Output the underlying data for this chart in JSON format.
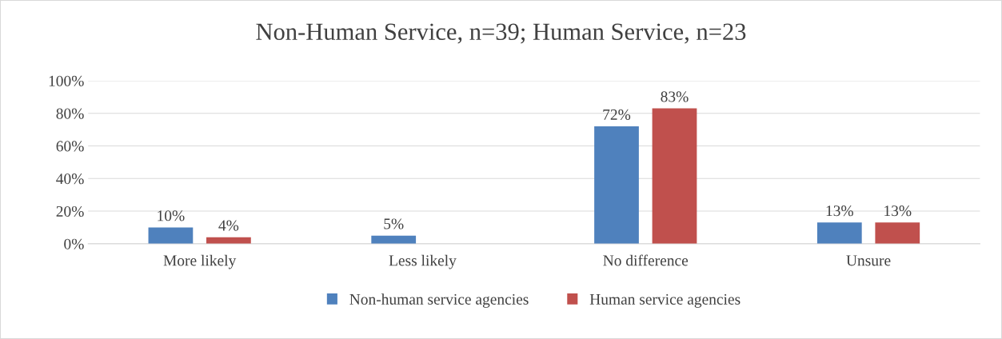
{
  "chart_data": {
    "type": "bar",
    "title": "Non-Human Service, n=39; Human Service, n=23",
    "categories": [
      "More likely",
      "Less likely",
      "No difference",
      "Unsure"
    ],
    "series": [
      {
        "name": "Non-human service agencies",
        "color": "#4f81bd",
        "values": [
          10,
          5,
          72,
          13
        ],
        "value_labels": [
          "10%",
          "5%",
          "72%",
          "13%"
        ]
      },
      {
        "name": "Human service agencies",
        "color": "#c0504d",
        "values": [
          4,
          null,
          83,
          13
        ],
        "value_labels": [
          "4%",
          null,
          "83%",
          "13%"
        ]
      }
    ],
    "ylim": [
      0,
      100
    ],
    "yticks": [
      {
        "value": 0,
        "label": "0%"
      },
      {
        "value": 20,
        "label": "20%"
      },
      {
        "value": 40,
        "label": "40%"
      },
      {
        "value": 60,
        "label": "60%"
      },
      {
        "value": 80,
        "label": "80%"
      },
      {
        "value": 100,
        "label": "100%"
      }
    ],
    "grid": "y",
    "legend": "bottom"
  }
}
